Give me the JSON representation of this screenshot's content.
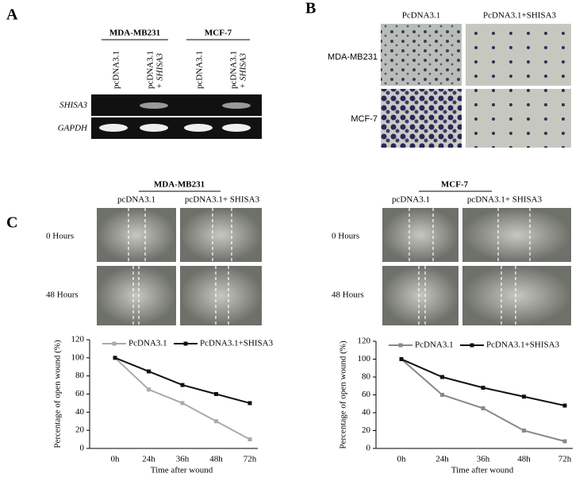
{
  "panel_labels": [
    "A",
    "B",
    "C"
  ],
  "panel_a": {
    "groups": [
      "MDA-MB231",
      "MCF-7"
    ],
    "lanes": [
      [
        "pcDNA3.1"
      ],
      [
        "pcDNA3.1",
        "+ SHISA3"
      ],
      [
        "pcDNA3.1"
      ],
      [
        "pcDNA3.1",
        "+ SHISA3"
      ]
    ],
    "rows": [
      "SHISA3",
      "GAPDH"
    ]
  },
  "panel_b": {
    "columns": [
      "PcDNA3.1",
      "PcDNA3.1+SHISA3"
    ],
    "rows": [
      "MDA-MB231",
      "MCF-7"
    ]
  },
  "panel_c": [
    {
      "title": "MDA-MB231",
      "columns": [
        "pcDNA3.1",
        "pcDNA3.1+ SHISA3"
      ],
      "rows": [
        "0 Hours",
        "48 Hours"
      ]
    },
    {
      "title": "MCF-7",
      "columns": [
        "pcDNA3.1",
        "pcDNA3.1+ SHISA3"
      ],
      "rows": [
        "0 Hours",
        "48 Hours"
      ]
    }
  ],
  "chart_data": [
    {
      "type": "line",
      "xlabel": "Time after wound",
      "ylabel": "Percentage of open wound (%)",
      "categories": [
        "0h",
        "24h",
        "36h",
        "48h",
        "72h"
      ],
      "ylim": [
        0,
        120
      ],
      "yticks": [
        0,
        20,
        40,
        60,
        80,
        100,
        120
      ],
      "series": [
        {
          "name": "PcDNA3.1",
          "color": "#aaaaaa",
          "values": [
            100,
            65,
            50,
            30,
            10
          ]
        },
        {
          "name": "PcDNA3.1+SHISA3",
          "color": "#111111",
          "values": [
            100,
            85,
            70,
            60,
            50
          ]
        }
      ]
    },
    {
      "type": "line",
      "xlabel": "Time after wound",
      "ylabel": "Percentage of open wound (%)",
      "categories": [
        "0h",
        "24h",
        "36h",
        "48h",
        "72h"
      ],
      "ylim": [
        0,
        120
      ],
      "yticks": [
        0,
        20,
        40,
        60,
        80,
        100,
        120
      ],
      "series": [
        {
          "name": "PcDNA3.1",
          "color": "#888888",
          "values": [
            100,
            60,
            45,
            20,
            8
          ]
        },
        {
          "name": "PcDNA3.1+SHISA3",
          "color": "#111111",
          "values": [
            100,
            80,
            68,
            58,
            48
          ]
        }
      ]
    }
  ]
}
